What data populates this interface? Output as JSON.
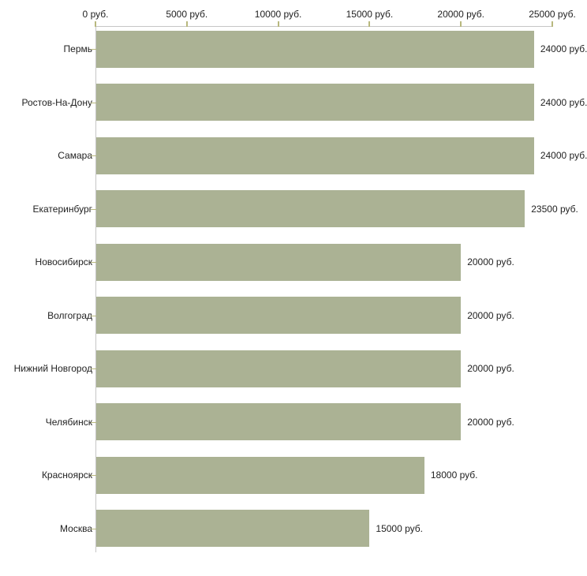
{
  "chart_data": {
    "type": "bar",
    "orientation": "horizontal",
    "title": "",
    "xlabel": "",
    "ylabel": "",
    "unit": "руб.",
    "categories": [
      "Пермь",
      "Ростов-На-Дону",
      "Самара",
      "Екатеринбург",
      "Новосибирск",
      "Волгоград",
      "Нижний Новгород",
      "Челябинск",
      "Красноярск",
      "Москва"
    ],
    "values": [
      24000,
      24000,
      24000,
      23500,
      20000,
      20000,
      20000,
      20000,
      18000,
      15000
    ],
    "value_labels": [
      "24000 руб.",
      "24000 руб.",
      "24000 руб.",
      "23500 руб.",
      "20000 руб.",
      "20000 руб.",
      "20000 руб.",
      "20000 руб.",
      "18000 руб.",
      "15000 руб."
    ],
    "x_tick_values": [
      0,
      5000,
      10000,
      15000,
      20000,
      25000
    ],
    "x_tick_labels": [
      "0 руб.",
      "5000 руб.",
      "10000 руб.",
      "15000 руб.",
      "20000 руб.",
      "25000 руб."
    ],
    "xlim": [
      0,
      25000
    ],
    "grid": false,
    "legend": false,
    "axis_position": "top",
    "colors": {
      "bar": "#abb294",
      "axis_line": "#c6c6c6",
      "tick": "#b8b87e",
      "text": "#222222",
      "background": "#ffffff"
    }
  }
}
